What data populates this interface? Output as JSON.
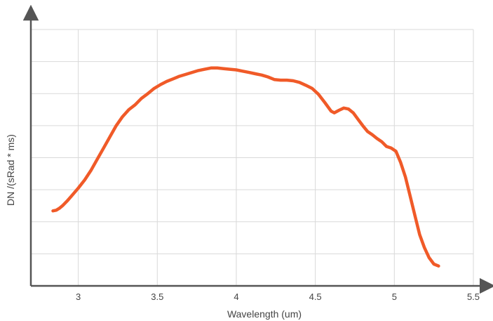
{
  "chart_data": {
    "type": "line",
    "title": "",
    "xlabel": "Wavelength (um)",
    "ylabel": "DN /(sRad * ms)",
    "xlim": [
      2.7,
      5.5
    ],
    "ylim": [
      0,
      8
    ],
    "x_ticks": [
      "3",
      "3.5",
      "4",
      "4.5",
      "5",
      "5.5"
    ],
    "x_tick_values": [
      3,
      3.5,
      4,
      4.5,
      5,
      5.5
    ],
    "y_grid_values": [
      1,
      2,
      3,
      4,
      5,
      6,
      7,
      8
    ],
    "grid": true,
    "line_color": "#f05a28",
    "axis_color": "#555555",
    "grid_color": "#d9d9d9",
    "series": [
      {
        "values_x": [
          2.84,
          2.86,
          2.88,
          2.9,
          2.93,
          2.96,
          3.0,
          3.04,
          3.08,
          3.12,
          3.16,
          3.2,
          3.24,
          3.28,
          3.32,
          3.36,
          3.4,
          3.44,
          3.48,
          3.52,
          3.56,
          3.6,
          3.64,
          3.68,
          3.72,
          3.76,
          3.8,
          3.84,
          3.88,
          3.92,
          3.96,
          4.0,
          4.04,
          4.08,
          4.12,
          4.16,
          4.2,
          4.24,
          4.28,
          4.32,
          4.36,
          4.4,
          4.44,
          4.48,
          4.52,
          4.56,
          4.6,
          4.62,
          4.65,
          4.68,
          4.71,
          4.74,
          4.77,
          4.8,
          4.83,
          4.86,
          4.89,
          4.92,
          4.95,
          4.98,
          5.01,
          5.04,
          5.07,
          5.1,
          5.13,
          5.16,
          5.19,
          5.22,
          5.25,
          5.28
        ],
        "values_y": [
          2.34,
          2.36,
          2.42,
          2.5,
          2.65,
          2.82,
          3.05,
          3.3,
          3.6,
          3.95,
          4.3,
          4.65,
          5.0,
          5.28,
          5.5,
          5.65,
          5.85,
          6.0,
          6.16,
          6.28,
          6.38,
          6.46,
          6.54,
          6.6,
          6.66,
          6.72,
          6.76,
          6.8,
          6.8,
          6.78,
          6.76,
          6.74,
          6.7,
          6.66,
          6.62,
          6.58,
          6.52,
          6.44,
          6.42,
          6.42,
          6.4,
          6.35,
          6.26,
          6.16,
          5.98,
          5.72,
          5.45,
          5.4,
          5.48,
          5.55,
          5.52,
          5.4,
          5.2,
          5.0,
          4.82,
          4.72,
          4.6,
          4.5,
          4.35,
          4.3,
          4.2,
          3.85,
          3.4,
          2.8,
          2.2,
          1.6,
          1.2,
          0.88,
          0.68,
          0.62
        ]
      }
    ]
  }
}
